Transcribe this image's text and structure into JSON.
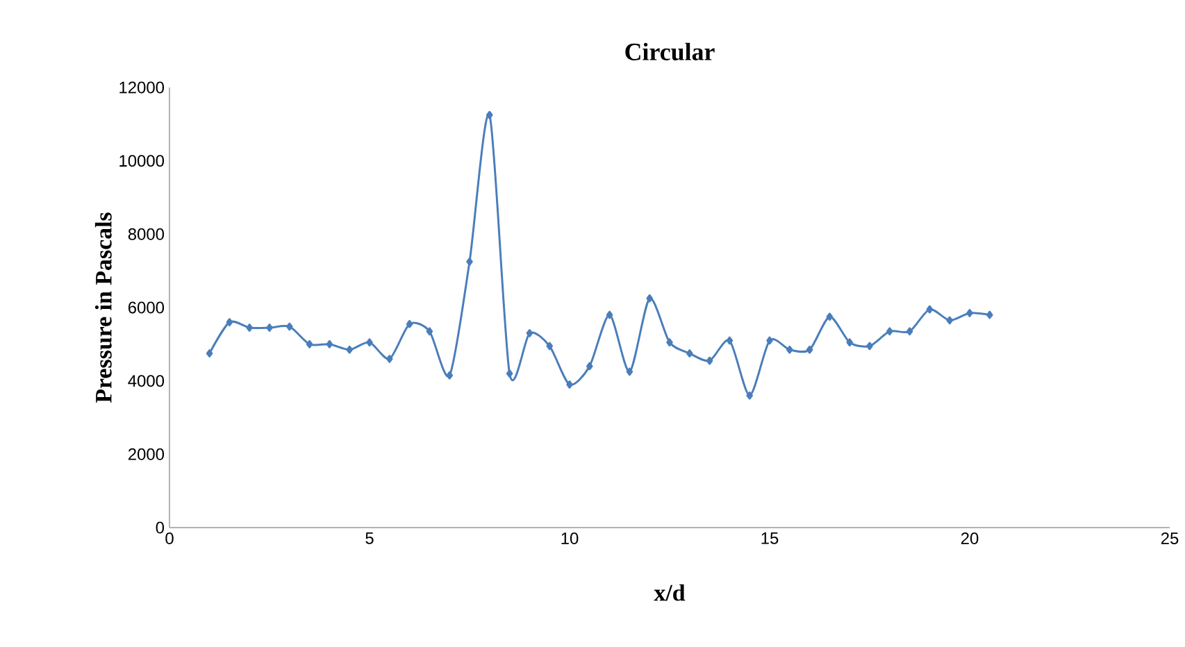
{
  "chart_data": {
    "type": "line",
    "title": "Circular",
    "xlabel": "x/d",
    "ylabel": "Pressure in Pascals",
    "x": [
      1,
      1.5,
      2,
      2.5,
      3,
      3.5,
      4,
      4.5,
      5,
      5.5,
      6,
      6.5,
      7,
      7.5,
      8,
      8.5,
      9,
      9.5,
      10,
      10.5,
      11,
      11.5,
      12,
      12.5,
      13,
      13.5,
      14,
      14.5,
      15,
      15.5,
      16,
      16.5,
      17,
      17.5,
      18,
      18.5,
      19,
      19.5,
      20,
      20.5
    ],
    "values": [
      4750,
      5600,
      5450,
      5450,
      5480,
      5000,
      5000,
      4850,
      5050,
      4600,
      5550,
      5350,
      4150,
      7250,
      11250,
      4200,
      5300,
      4950,
      3900,
      4400,
      5800,
      4250,
      6250,
      5050,
      4750,
      4550,
      5100,
      3600,
      5100,
      4850,
      4850,
      5750,
      5050,
      4950,
      5350,
      5350,
      5950,
      5650,
      5850,
      5800
    ],
    "color": "#4a7ebb",
    "marker": "diamond",
    "line_style": "solid",
    "xlim": [
      0,
      25
    ],
    "xticks": [
      0,
      5,
      10,
      15,
      20,
      25
    ],
    "ylim": [
      0,
      12000
    ],
    "yticks": [
      0,
      2000,
      4000,
      6000,
      8000,
      10000,
      12000
    ]
  }
}
